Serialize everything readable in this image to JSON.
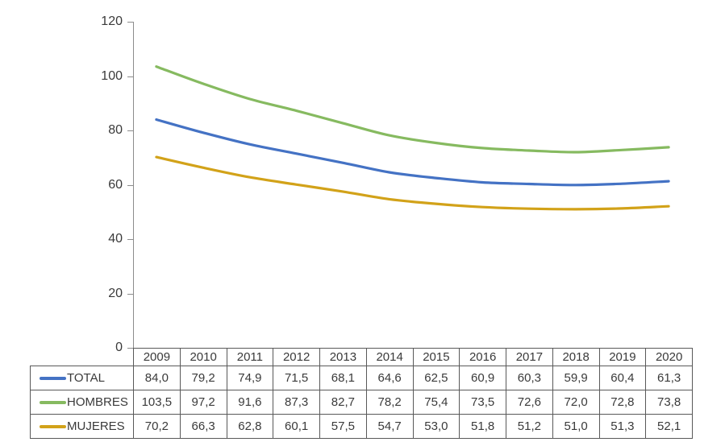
{
  "chart_data": {
    "type": "line",
    "smoothed": true,
    "categories": [
      "2009",
      "2010",
      "2011",
      "2012",
      "2013",
      "2014",
      "2015",
      "2016",
      "2017",
      "2018",
      "2019",
      "2020"
    ],
    "series": [
      {
        "name": "TOTAL",
        "color": "#4472C4",
        "values": [
          84.0,
          79.2,
          74.9,
          71.5,
          68.1,
          64.6,
          62.5,
          60.9,
          60.3,
          59.9,
          60.4,
          61.3
        ]
      },
      {
        "name": "HOMBRES",
        "color": "#86BA60",
        "values": [
          103.5,
          97.2,
          91.6,
          87.3,
          82.7,
          78.2,
          75.4,
          73.5,
          72.6,
          72.0,
          72.8,
          73.8
        ]
      },
      {
        "name": "MUJERES",
        "color": "#D2A219",
        "values": [
          70.2,
          66.3,
          62.8,
          60.1,
          57.5,
          54.7,
          53.0,
          51.8,
          51.2,
          51.0,
          51.3,
          52.1
        ]
      }
    ],
    "title": "",
    "xlabel": "",
    "ylabel": "",
    "ylim": [
      0,
      120
    ],
    "yticks": [
      0,
      20,
      40,
      60,
      80,
      100,
      120
    ],
    "grid": false,
    "legend_position": "data-table-left-column",
    "decimal_separator": ","
  },
  "table": {
    "years": [
      "2009",
      "2010",
      "2011",
      "2012",
      "2013",
      "2014",
      "2015",
      "2016",
      "2017",
      "2018",
      "2019",
      "2020"
    ],
    "rows": [
      {
        "label": "TOTAL",
        "values": [
          "84,0",
          "79,2",
          "74,9",
          "71,5",
          "68,1",
          "64,6",
          "62,5",
          "60,9",
          "60,3",
          "59,9",
          "60,4",
          "61,3"
        ]
      },
      {
        "label": "HOMBRES",
        "values": [
          "103,5",
          "97,2",
          "91,6",
          "87,3",
          "82,7",
          "78,2",
          "75,4",
          "73,5",
          "72,6",
          "72,0",
          "72,8",
          "73,8"
        ]
      },
      {
        "label": "MUJERES",
        "values": [
          "70,2",
          "66,3",
          "62,8",
          "60,1",
          "57,5",
          "54,7",
          "53,0",
          "51,8",
          "51,2",
          "51,0",
          "51,3",
          "52,1"
        ]
      }
    ]
  },
  "colors": {
    "table_border": "#595959",
    "axis": "#8c8c8c",
    "text": "#3a3a3a"
  }
}
